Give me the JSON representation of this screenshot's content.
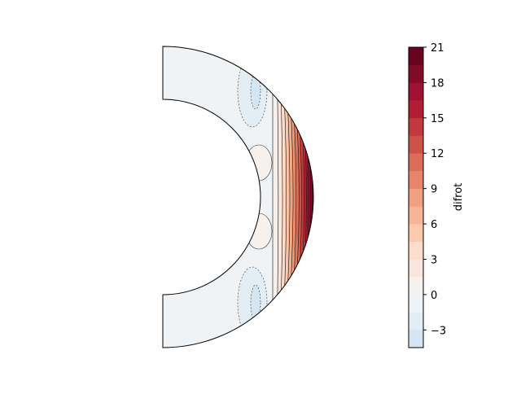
{
  "chart_data": {
    "type": "contour",
    "geometry": "meridional half-annulus",
    "colorbar_label": "difrot",
    "colormap": "RdBu_r",
    "levels": [
      -4.5,
      -3,
      -1.5,
      0,
      1.5,
      3,
      4.5,
      6,
      7.5,
      9,
      10.5,
      12,
      13.5,
      15,
      16.5,
      18,
      19.5,
      21
    ],
    "level_colors": [
      "#d4e6f1",
      "#e3edf4",
      "#eff3f6",
      "#f7f1ed",
      "#f9e6dc",
      "#fcdccb",
      "#fac9b0",
      "#f6b596",
      "#f0a07e",
      "#e6856a",
      "#dc6e57",
      "#cc5148",
      "#c0393f",
      "#b11e34",
      "#9c1230",
      "#800b29",
      "#690420"
    ],
    "colorbar_ticks": [
      21,
      18,
      15,
      12,
      9,
      6,
      3,
      0,
      -3
    ],
    "colorbar_tick_labels": [
      "21",
      "18",
      "15",
      "12",
      "9",
      "6",
      "3",
      "0",
      "−3"
    ],
    "value_range": [
      -4.5,
      21
    ],
    "negative_contours": "dashed",
    "max_near": "outer equator"
  }
}
